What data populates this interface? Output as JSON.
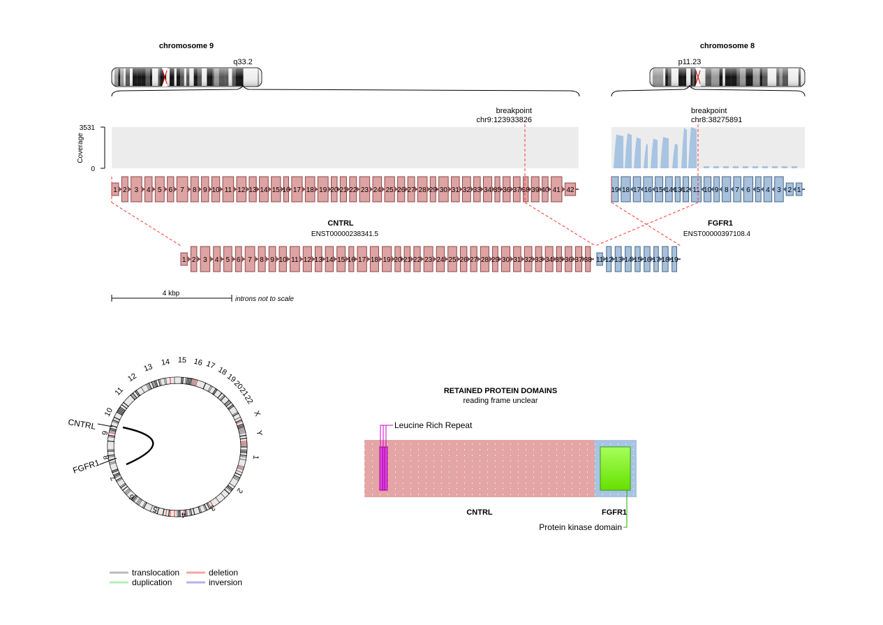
{
  "gene5": {
    "name": "CNTRL",
    "transcript": "ENST00000238341.5",
    "chromosome_title": "chromosome 9",
    "band": "q33.2",
    "breakpoint_label": "breakpoint",
    "breakpoint": "chr9:123933826",
    "exon_count": 42,
    "color": "#e3a5a5"
  },
  "gene3": {
    "name": "FGFR1",
    "transcript": "ENST00000397108.4",
    "chromosome_title": "chromosome 8",
    "band": "p11.23",
    "breakpoint_label": "breakpoint",
    "breakpoint": "chr8:38275891",
    "exon_count": 19,
    "color": "#a7c4e2"
  },
  "coverage": {
    "label": "Coverage",
    "max": "3531",
    "min": "0"
  },
  "fusion": {
    "gene5_exons": 38,
    "gene3_exons_from": 11,
    "gene3_exons_to": 19
  },
  "scale": {
    "label": "4 kbp",
    "note": "introns not to scale"
  },
  "circos": {
    "chromosomes": [
      "1",
      "2",
      "3",
      "4",
      "5",
      "6",
      "7",
      "8",
      "9",
      "10",
      "11",
      "12",
      "13",
      "14",
      "15",
      "16",
      "17",
      "18",
      "19",
      "20",
      "21",
      "22",
      "X",
      "Y"
    ],
    "gene5_label": "CNTRL",
    "gene3_label": "FGFR1"
  },
  "domains": {
    "title": "RETAINED PROTEIN DOMAINS",
    "subtitle": "reading frame unclear",
    "gene5_label": "CNTRL",
    "gene3_label": "FGFR1",
    "items": [
      {
        "name": "Leucine Rich Repeat",
        "color": "#cc00cc"
      },
      {
        "name": "Protein kinase domain",
        "color": "#22aa00"
      }
    ]
  },
  "legend": [
    {
      "label": "translocation",
      "color": "#bbbbbb"
    },
    {
      "label": "deletion",
      "color": "#f4a6a6"
    },
    {
      "label": "duplication",
      "color": "#b3f0b3"
    },
    {
      "label": "inversion",
      "color": "#b3b3f0"
    }
  ]
}
